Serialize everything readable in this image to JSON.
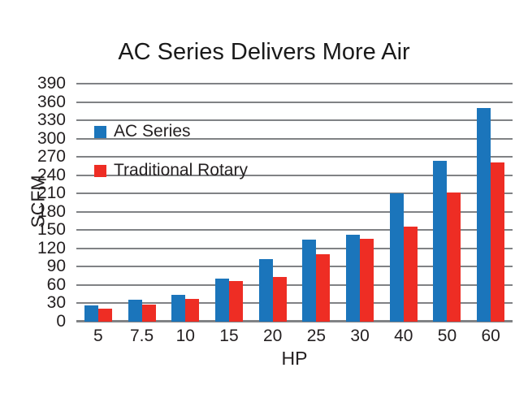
{
  "title": "AC Series Delivers More Air",
  "colors": {
    "ac_series": "#1B75BB",
    "traditional_rotary": "#EE2D24",
    "gridline": "#808285",
    "text": "#231F20"
  },
  "legend": {
    "items": [
      {
        "label": "AC Series",
        "color": "#1B75BB"
      },
      {
        "label": "Traditional Rotary",
        "color": "#EE2D24"
      }
    ]
  },
  "chart_data": {
    "type": "bar",
    "title": "AC Series Delivers More Air",
    "xlabel": "HP",
    "ylabel": "SCFM",
    "ylim": [
      0,
      390
    ],
    "ytick_step": 30,
    "yticks": [
      0,
      30,
      60,
      90,
      120,
      150,
      180,
      210,
      240,
      270,
      300,
      330,
      360,
      390
    ],
    "grid": true,
    "legend_position": "upper-left-inside",
    "categories": [
      "5",
      "7.5",
      "10",
      "15",
      "20",
      "25",
      "30",
      "40",
      "50",
      "60"
    ],
    "series": [
      {
        "name": "AC Series",
        "color": "#1B75BB",
        "values": [
          26,
          36,
          44,
          71,
          103,
          135,
          143,
          210,
          263,
          350
        ]
      },
      {
        "name": "Traditional Rotary",
        "color": "#EE2D24",
        "values": [
          21,
          28,
          37,
          66,
          73,
          110,
          136,
          156,
          212,
          261
        ]
      }
    ]
  }
}
